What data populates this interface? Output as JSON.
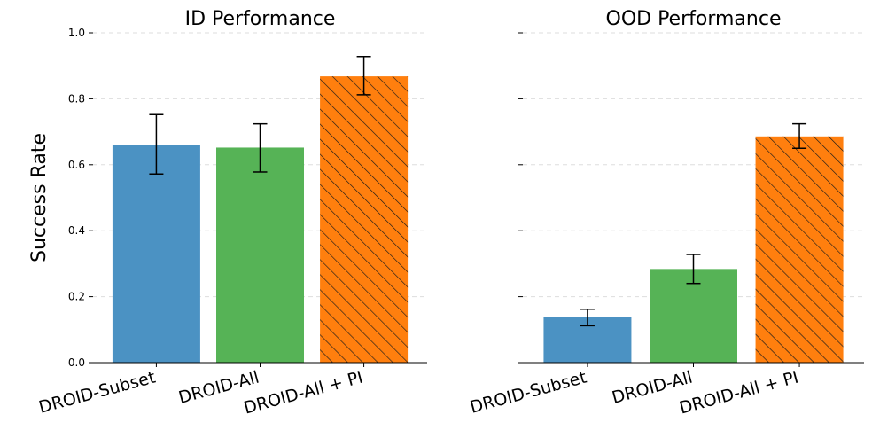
{
  "ylabel": "Success Rate",
  "colors": {
    "blue": "#4b92c3",
    "green": "#56b356",
    "orange": "#ff7f0e",
    "hatch": "#1a1a1a",
    "grid": "#dddddd"
  },
  "chart_data": [
    {
      "type": "bar",
      "title": "ID Performance",
      "ylabel": "Success Rate",
      "ylim": [
        0,
        1.0
      ],
      "yticks": [
        "0.0",
        "0.2",
        "0.4",
        "0.6",
        "0.8",
        "1.0"
      ],
      "grid": "horizontal dashed",
      "categories": [
        "DROID-Subset",
        "DROID-All",
        "DROID-All + PI"
      ],
      "values": [
        0.66,
        0.652,
        0.868
      ],
      "error_low": [
        0.572,
        0.578,
        0.812
      ],
      "error_high": [
        0.752,
        0.724,
        0.928
      ],
      "hatched": [
        false,
        false,
        true
      ]
    },
    {
      "type": "bar",
      "title": "OOD Performance",
      "ylabel": "",
      "ylim": [
        0,
        1.0
      ],
      "yticks": [
        "",
        "",
        "",
        "",
        "",
        ""
      ],
      "grid": "horizontal dashed",
      "categories": [
        "DROID-Subset",
        "DROID-All",
        "DROID-All + PI"
      ],
      "values": [
        0.138,
        0.284,
        0.686
      ],
      "error_low": [
        0.112,
        0.24,
        0.65
      ],
      "error_high": [
        0.162,
        0.328,
        0.724
      ],
      "hatched": [
        false,
        false,
        true
      ]
    }
  ]
}
